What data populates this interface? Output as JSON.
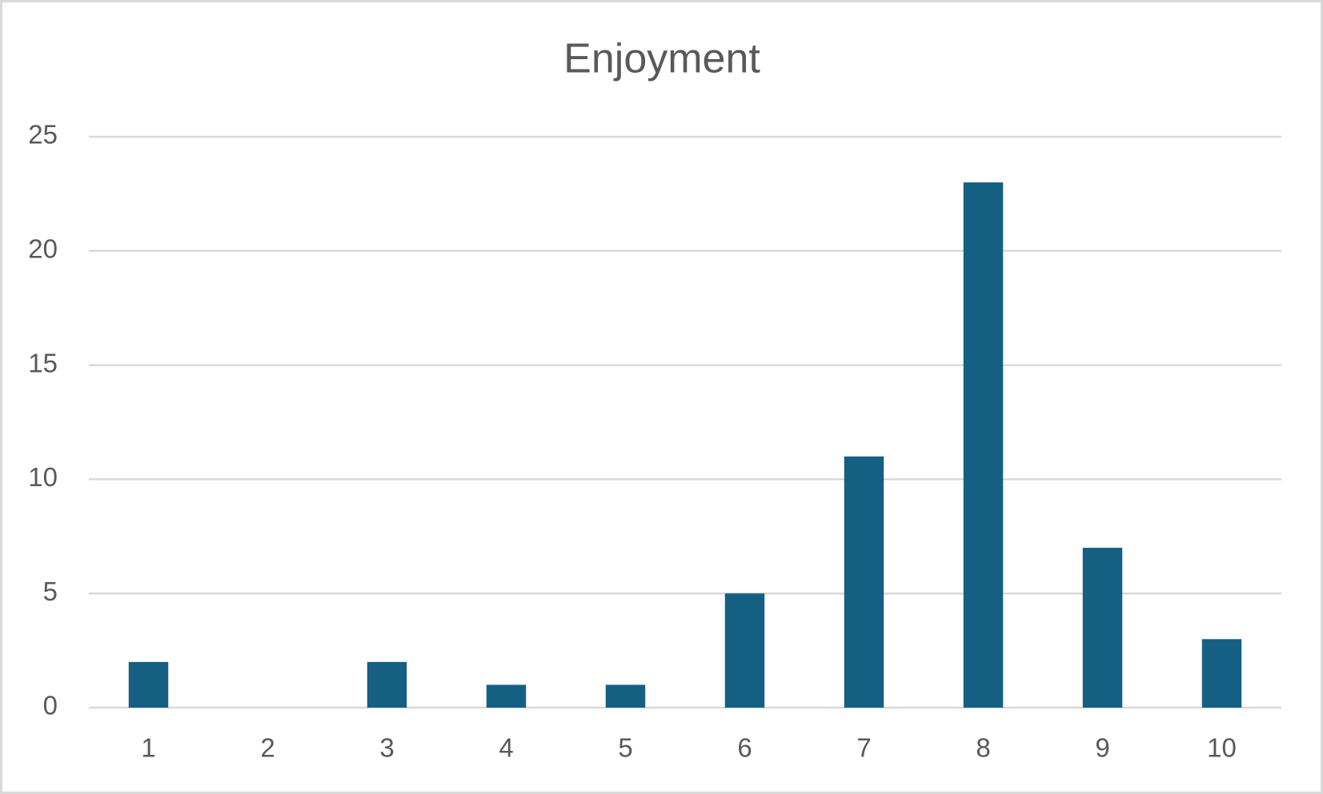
{
  "chart_data": {
    "type": "bar",
    "title": "Enjoyment",
    "categories": [
      "1",
      "2",
      "3",
      "4",
      "5",
      "6",
      "7",
      "8",
      "9",
      "10"
    ],
    "values": [
      2,
      0,
      2,
      1,
      1,
      5,
      11,
      23,
      7,
      3
    ],
    "color": "#156082",
    "ylim": [
      0,
      25
    ],
    "yticks": [
      0,
      5,
      10,
      15,
      20,
      25
    ],
    "grid": true
  }
}
